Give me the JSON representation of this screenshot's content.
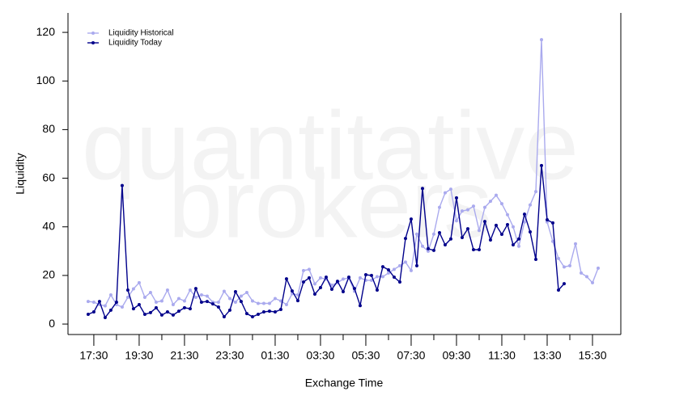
{
  "chart_data": {
    "type": "line",
    "watermark": [
      "quantitative",
      "brokers"
    ],
    "x_label": "Exchange Time",
    "y_label": "Liquidity",
    "x": [
      17.25,
      17.5,
      17.75,
      18,
      18.25,
      18.5,
      18.75,
      19,
      19.25,
      19.5,
      19.75,
      20,
      20.25,
      20.5,
      20.75,
      21,
      21.25,
      21.5,
      21.75,
      22,
      22.25,
      22.5,
      22.75,
      23,
      23.25,
      23.5,
      23.75,
      24,
      24.25,
      24.5,
      24.75,
      25,
      25.25,
      25.5,
      25.75,
      26,
      26.25,
      26.5,
      26.75,
      27,
      27.25,
      27.5,
      27.75,
      28,
      28.25,
      28.5,
      28.75,
      29,
      29.25,
      29.5,
      29.75,
      30,
      30.25,
      30.5,
      30.75,
      31,
      31.25,
      31.5,
      31.75,
      32,
      32.25,
      32.5,
      32.75,
      33,
      33.25,
      33.5,
      33.75,
      34,
      34.25,
      34.5,
      34.75,
      35,
      35.25,
      35.5,
      35.75,
      36,
      36.25,
      36.5,
      36.75,
      37,
      37.25,
      37.5,
      37.75,
      38,
      38.25,
      38.5,
      38.75,
      39,
      39.25,
      39.5,
      39.75
    ],
    "series": [
      {
        "name": "Liquidity Historical",
        "color": "#aaaaee",
        "values": [
          9.3,
          9,
          8,
          7.5,
          12,
          8,
          7,
          11,
          14.5,
          17,
          11,
          13,
          9,
          9.5,
          14,
          8,
          10.5,
          9.5,
          14,
          11,
          12,
          11.5,
          9,
          9,
          13.5,
          10.5,
          9,
          11.5,
          13,
          9.5,
          8.5,
          8.5,
          8.5,
          10.5,
          9.5,
          8,
          12.5,
          12,
          22,
          22.5,
          16.5,
          19,
          18.5,
          16,
          17,
          18.5,
          19,
          13.5,
          19,
          18,
          18,
          19.5,
          19.5,
          21,
          22.5,
          24,
          25.5,
          22,
          37,
          32,
          30,
          37,
          48,
          54,
          55.5,
          42.5,
          46.5,
          47,
          48.5,
          38.5,
          48,
          50.5,
          53,
          49.5,
          45,
          40,
          32,
          42,
          49,
          54.5,
          117,
          42,
          34,
          27,
          23.5,
          24,
          33,
          21,
          19.5,
          17,
          23
        ]
      },
      {
        "name": "Liquidity Today",
        "color": "#00008b",
        "values": [
          4,
          5,
          9.3,
          2.7,
          5.7,
          9,
          57,
          14,
          6.3,
          8,
          4,
          4.7,
          6.7,
          3.7,
          5,
          3.7,
          5.3,
          6.7,
          6.3,
          14.6,
          9,
          9.3,
          8.3,
          7,
          3,
          5.7,
          13.3,
          9.3,
          4.3,
          3,
          4,
          5,
          5.3,
          5,
          6,
          18.6,
          13.6,
          9.6,
          17.3,
          19,
          12.3,
          15,
          19.3,
          14.3,
          17.6,
          13.3,
          19.3,
          14.6,
          7.6,
          20.3,
          20,
          14,
          23.6,
          22.3,
          19.3,
          17.3,
          35.2,
          43.2,
          24,
          55.8,
          31,
          30.3,
          37.6,
          32.6,
          35,
          51.9,
          35.6,
          39.2,
          30.6,
          30.6,
          42.2,
          34.6,
          40.6,
          36.9,
          40.9,
          32.6,
          35,
          45.2,
          37.9,
          26.6,
          65.2,
          42.9,
          41.6,
          14,
          16.6,
          null,
          null,
          null,
          null,
          null,
          null
        ]
      }
    ],
    "xlim": [
      16.36,
      40.75
    ],
    "xticks": [
      {
        "value": 17.5,
        "label": "17:30"
      },
      {
        "value": 19.5,
        "label": "19:30"
      },
      {
        "value": 21.5,
        "label": "21:30"
      },
      {
        "value": 23.5,
        "label": "23:30"
      },
      {
        "value": 25.5,
        "label": "01:30"
      },
      {
        "value": 27.5,
        "label": "03:30"
      },
      {
        "value": 29.5,
        "label": "05:30"
      },
      {
        "value": 31.5,
        "label": "07:30"
      },
      {
        "value": 33.5,
        "label": "09:30"
      },
      {
        "value": 35.5,
        "label": "11:30"
      },
      {
        "value": 37.5,
        "label": "13:30"
      },
      {
        "value": 39.5,
        "label": "15:30"
      }
    ],
    "xminor_ticks": [
      18.5,
      20.5,
      22.5,
      24.5,
      26.5,
      28.5,
      30.5,
      32.5,
      34.5,
      36.5,
      38.5
    ],
    "ylim": [
      -4.3,
      128
    ],
    "yticks": [
      0,
      20,
      40,
      60,
      80,
      100,
      120
    ],
    "legend": "upper-left",
    "markers": true
  }
}
